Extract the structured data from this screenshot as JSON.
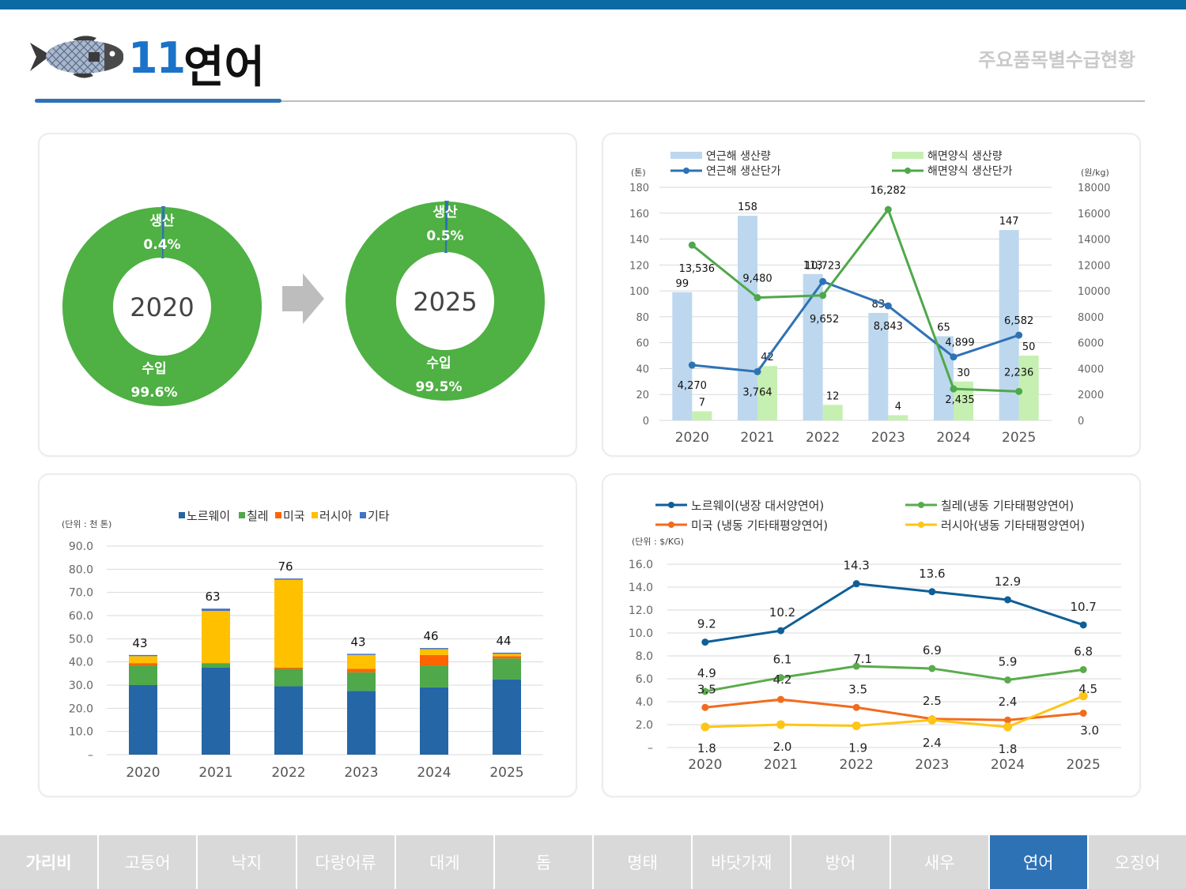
{
  "header": {
    "number": "11",
    "title": "연어",
    "right_title": "주요품목별수급현황"
  },
  "tabs": [
    {
      "label": "가리비",
      "active": false
    },
    {
      "label": "고등어",
      "active": false
    },
    {
      "label": "낙지",
      "active": false
    },
    {
      "label": "다랑어류",
      "active": false
    },
    {
      "label": "대게",
      "active": false
    },
    {
      "label": "돔",
      "active": false
    },
    {
      "label": "명태",
      "active": false
    },
    {
      "label": "바닷가재",
      "active": false
    },
    {
      "label": "방어",
      "active": false
    },
    {
      "label": "새우",
      "active": false
    },
    {
      "label": "연어",
      "active": true
    },
    {
      "label": "오징어",
      "active": false
    }
  ],
  "colors": {
    "accent": "#2e72b6",
    "donut_import": "#4fb044",
    "donut_production": "#2e72b6",
    "light_blue": "#bdd7ee",
    "light_green": "#c6efb2",
    "blue_line": "#2e72b6",
    "green_line": "#4fa84a",
    "norway": "#2566a6",
    "chile": "#4fa84a",
    "usa": "#fe6400",
    "russia": "#ffc000",
    "other": "#4472c4",
    "price_norway": "#0f5f97",
    "price_chile": "#5aab4c",
    "price_usa": "#f26b1d",
    "price_russia": "#ffc517"
  },
  "chart_data": [
    {
      "type": "pie",
      "variant": "donut",
      "center_label": "2020",
      "slices": [
        {
          "name": "생산",
          "value": 0.4,
          "label": "0.4%"
        },
        {
          "name": "수입",
          "value": 99.6,
          "label": "99.6%"
        }
      ]
    },
    {
      "type": "pie",
      "variant": "donut",
      "center_label": "2025",
      "slices": [
        {
          "name": "생산",
          "value": 0.5,
          "label": "0.5%"
        },
        {
          "name": "수입",
          "value": 99.5,
          "label": "99.5%"
        }
      ]
    },
    {
      "type": "bar",
      "combo": "bar+line",
      "categories": [
        "2020",
        "2021",
        "2022",
        "2023",
        "2024",
        "2025"
      ],
      "left_unit": "(톤)",
      "right_unit": "(원/kg)",
      "ylim": [
        0,
        180
      ],
      "y2lim": [
        0,
        18000
      ],
      "y_ticks": [
        "0",
        "20",
        "40",
        "60",
        "80",
        "100",
        "120",
        "140",
        "160",
        "180"
      ],
      "y2_ticks": [
        "0",
        "2000",
        "4000",
        "6000",
        "8000",
        "10000",
        "12000",
        "14000",
        "16000",
        "18000"
      ],
      "series": [
        {
          "name": "연근해 생산량",
          "kind": "bar",
          "values": [
            99,
            158,
            113,
            83,
            65,
            147
          ],
          "labels": [
            "99",
            "158",
            "113",
            "83",
            "65",
            "147"
          ]
        },
        {
          "name": "해면양식 생산량",
          "kind": "bar",
          "values": [
            7,
            42,
            12,
            4,
            30,
            50
          ],
          "labels": [
            "7",
            "42",
            "12",
            "4",
            "30",
            "50"
          ]
        },
        {
          "name": "연근해 생산단가",
          "kind": "line",
          "axis": "right",
          "values": [
            4270,
            3764,
            10723,
            8843,
            4899,
            6582
          ],
          "labels": [
            "4,270",
            "3,764",
            "10,723",
            "8,843",
            "4,899",
            "6,582"
          ]
        },
        {
          "name": "해면양식 생산단가",
          "kind": "line",
          "axis": "right",
          "values": [
            13536,
            9480,
            9652,
            16282,
            2435,
            2236
          ],
          "labels": [
            "13,536",
            "9,480",
            "9,652",
            "16,282",
            "2,435",
            "2,236"
          ]
        }
      ],
      "legend_position": "top"
    },
    {
      "type": "bar",
      "stacked": true,
      "categories": [
        "2020",
        "2021",
        "2022",
        "2023",
        "2024",
        "2025"
      ],
      "unit": "(단위 : 천 톤)",
      "ylim": [
        0,
        90
      ],
      "y_ticks": [
        "–",
        "10.0",
        "20.0",
        "30.0",
        "40.0",
        "50.0",
        "60.0",
        "70.0",
        "80.0",
        "90.0"
      ],
      "totals": [
        "43",
        "63",
        "76",
        "43",
        "46",
        "44"
      ],
      "series": [
        {
          "name": "노르웨이",
          "values": [
            30.0,
            37.5,
            29.5,
            27.5,
            29.0,
            32.5
          ]
        },
        {
          "name": "칠레",
          "values": [
            8.5,
            2.0,
            7.5,
            8.0,
            9.5,
            9.0
          ]
        },
        {
          "name": "미국",
          "values": [
            1.0,
            0.0,
            0.5,
            1.5,
            4.5,
            1.0
          ]
        },
        {
          "name": "러시아",
          "values": [
            3.0,
            22.5,
            38.0,
            6.0,
            2.5,
            1.0
          ]
        },
        {
          "name": "기타",
          "values": [
            0.5,
            1.0,
            0.5,
            0.5,
            0.5,
            0.5
          ]
        }
      ],
      "legend_position": "top"
    },
    {
      "type": "line",
      "categories": [
        "2020",
        "2021",
        "2022",
        "2023",
        "2024",
        "2025"
      ],
      "unit": "(단위 : $/KG)",
      "ylim": [
        0,
        16
      ],
      "y_ticks": [
        "–",
        "2.0",
        "4.0",
        "6.0",
        "8.0",
        "10.0",
        "12.0",
        "14.0",
        "16.0"
      ],
      "series": [
        {
          "name": "노르웨이(냉장 대서양연어)",
          "values": [
            9.2,
            10.2,
            14.3,
            13.6,
            12.9,
            10.7
          ],
          "labels": [
            "9.2",
            "10.2",
            "14.3",
            "13.6",
            "12.9",
            "10.7"
          ]
        },
        {
          "name": "칠레(냉동 기타태평양연어)",
          "values": [
            4.9,
            6.1,
            7.1,
            6.9,
            5.9,
            6.8
          ],
          "labels": [
            "4.9",
            "6.1",
            "7.1",
            "6.9",
            "5.9",
            "6.8"
          ]
        },
        {
          "name": "미국 (냉동 기타태평양연어)",
          "values": [
            3.5,
            4.2,
            3.5,
            2.5,
            2.4,
            3.0
          ],
          "labels": [
            "3.5",
            "4.2",
            "3.5",
            "2.5",
            "2.4",
            "3.0"
          ]
        },
        {
          "name": "러시아(냉동 기타태평양연어)",
          "values": [
            1.8,
            2.0,
            1.9,
            2.4,
            1.8,
            4.5
          ],
          "labels": [
            "1.8",
            "2.0",
            "1.9",
            "2.4",
            "1.8",
            "4.5"
          ]
        }
      ],
      "legend_position": "top"
    }
  ]
}
